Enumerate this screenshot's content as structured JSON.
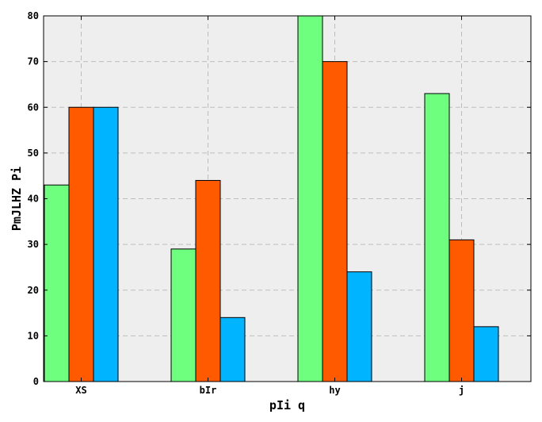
{
  "chart_data": {
    "type": "bar",
    "categories": [
      "XS",
      "bIr",
      "hy",
      "j"
    ],
    "series": [
      {
        "values": [
          43,
          29,
          80,
          63
        ],
        "color": "#6eff7e"
      },
      {
        "values": [
          60,
          44,
          70,
          31
        ],
        "color": "#ff5a00"
      },
      {
        "values": [
          60,
          14,
          24,
          12
        ],
        "color": "#00b4ff"
      }
    ],
    "xlabel": "pIi q",
    "ylabel": "PmJLHZ Pi",
    "ylim": [
      0,
      80
    ],
    "yticks": [
      0,
      10,
      20,
      30,
      40,
      50,
      60,
      70,
      80
    ],
    "grid": true,
    "plot_background": "#eeeeee"
  }
}
